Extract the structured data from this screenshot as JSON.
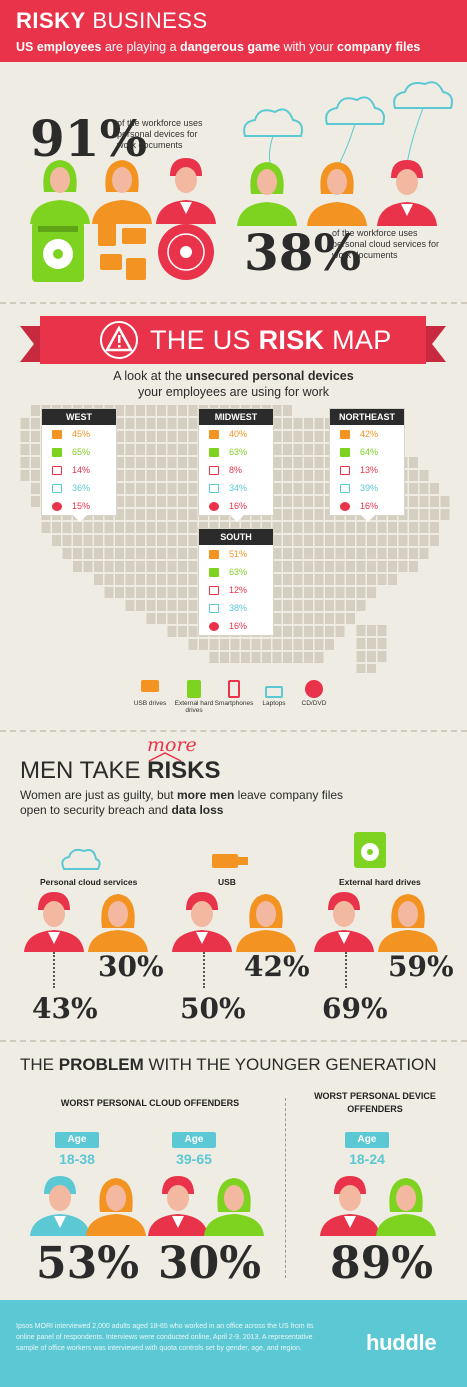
{
  "header": {
    "title_bold": "RISKY",
    "title_rest": " BUSINESS",
    "sub_pre": "US employees",
    "sub_mid": " are playing a ",
    "sub_bold": "dangerous game",
    "sub_mid2": " with your ",
    "sub_bold2": "company files"
  },
  "top": {
    "stat1_value": "91%",
    "stat1_text": "of the workforce uses personal devices for work documents",
    "stat2_value": "38%",
    "stat2_text": "of the workforce uses personal cloud services for work documents"
  },
  "risk_map": {
    "title_pre": "THE US ",
    "title_bold": "RISK",
    "title_post": " MAP",
    "subtitle_pre": "A look at the ",
    "subtitle_bold": "unsecured personal devices",
    "subtitle_post": " your employees are using for work",
    "regions": [
      {
        "name": "WEST",
        "values": [
          "45%",
          "65%",
          "14%",
          "36%",
          "15%"
        ]
      },
      {
        "name": "MIDWEST",
        "values": [
          "40%",
          "63%",
          "8%",
          "34%",
          "16%"
        ]
      },
      {
        "name": "NORTHEAST",
        "values": [
          "42%",
          "64%",
          "13%",
          "39%",
          "16%"
        ]
      },
      {
        "name": "SOUTH",
        "values": [
          "51%",
          "63%",
          "12%",
          "38%",
          "16%"
        ]
      }
    ],
    "legend": [
      "USB drives",
      "External hard drives",
      "Smartphones",
      "Laptops",
      "CD/DVD"
    ],
    "colors": {
      "usb": "#f39422",
      "hdd": "#7ed321",
      "phone": "#e8334a",
      "laptop": "#5bc8d4",
      "cd": "#e8334a"
    }
  },
  "men": {
    "title_pre": "MEN TAKE ",
    "title_bold": "RISKS",
    "more": "more",
    "sub_pre": "Women are just as guilty, but ",
    "sub_bold": "more men",
    "sub_mid": " leave company files open to security breach and ",
    "sub_bold2": "data loss",
    "categories": [
      {
        "label": "Personal cloud services",
        "women": "30%",
        "men": "43%"
      },
      {
        "label": "USB",
        "women": "42%",
        "men": "50%"
      },
      {
        "label": "External hard drives",
        "women": "59%",
        "men": "69%"
      }
    ]
  },
  "younger": {
    "title_pre": "THE ",
    "title_bold": "PROBLEM",
    "title_post": " WITH THE YOUNGER GENERATION",
    "cloud_head": "WORST  PERSONAL CLOUD OFFENDERS",
    "device_head": "WORST PERSONAL DEVICE OFFENDERS",
    "age_label": "Age",
    "groups": [
      {
        "range": "18-38",
        "pct": "53%"
      },
      {
        "range": "39-65",
        "pct": "30%"
      },
      {
        "range": "18-24",
        "pct": "89%"
      }
    ]
  },
  "footer": {
    "note": "Ipsos MORI interviewed 2,000 adults aged 18-65 who worked in an office across the US from its online panel of respondents. Interviews were conducted online, April 2-9, 2013. A representative sample of office workers was interviewed with quota controls set by gender, age, and region.",
    "logo": "huddle"
  }
}
